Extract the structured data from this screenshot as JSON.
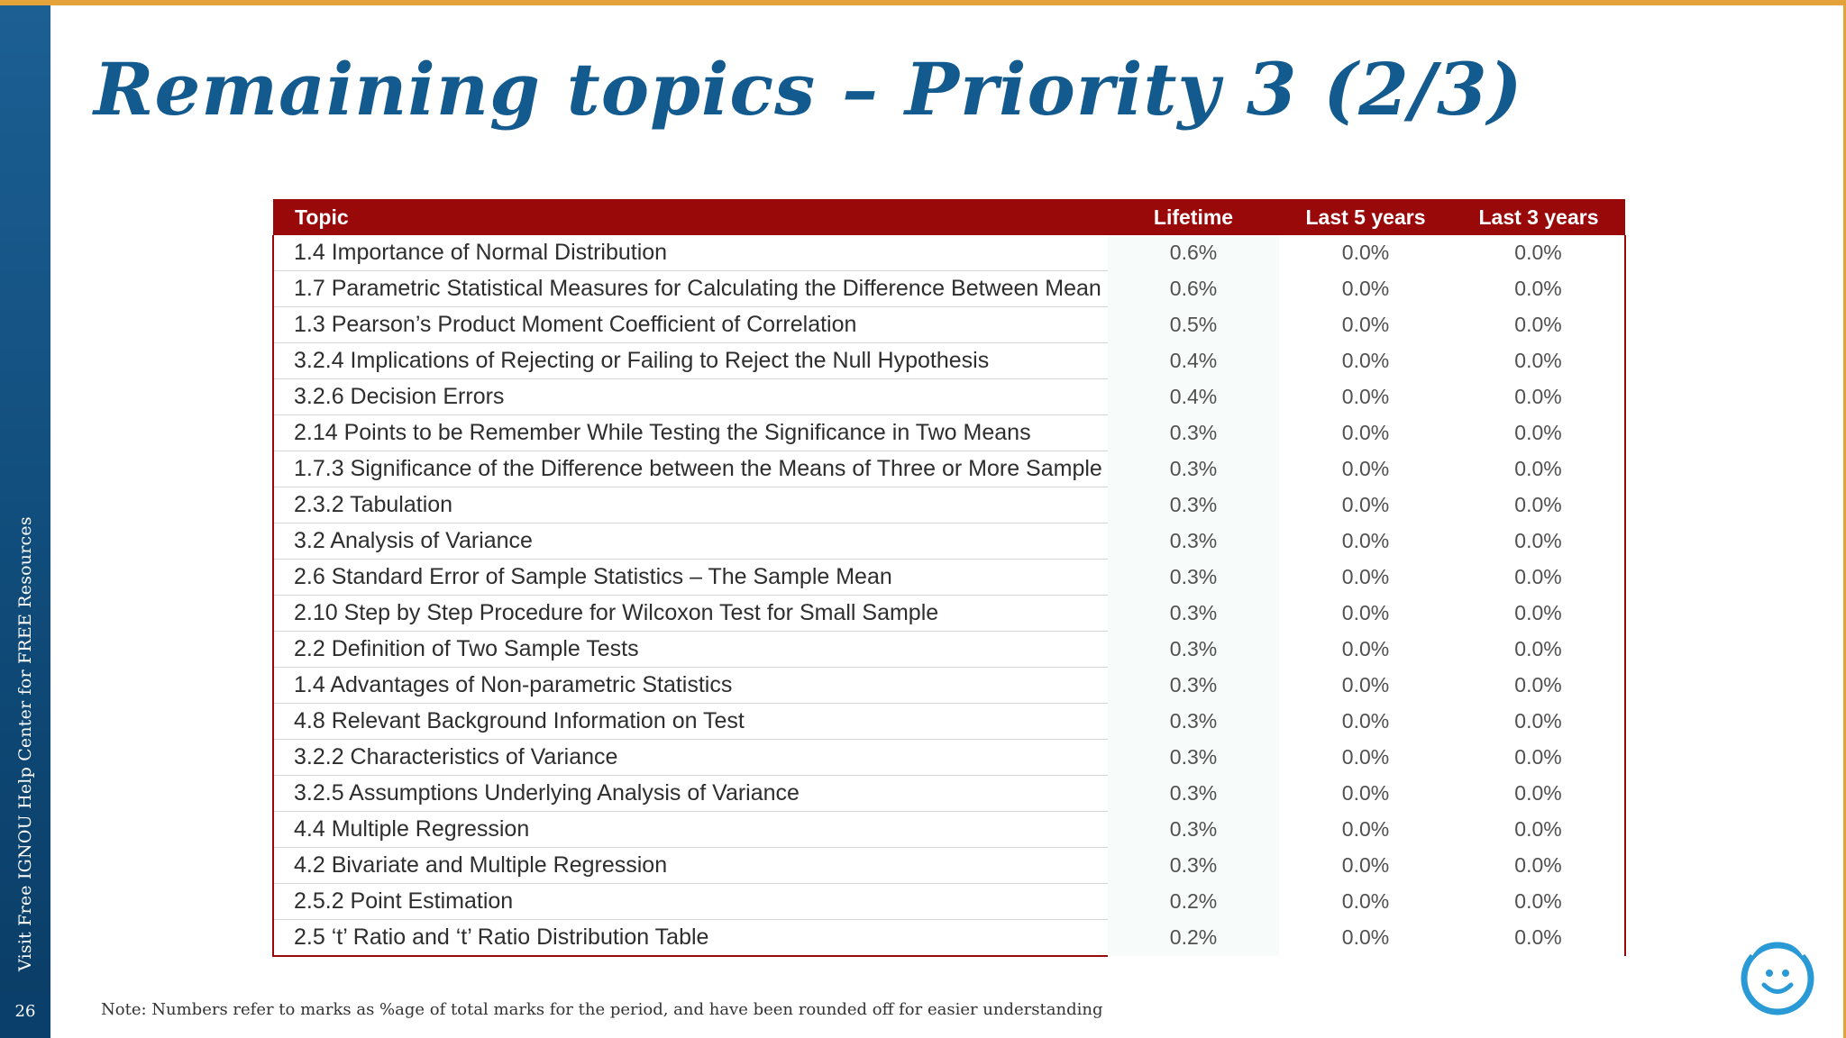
{
  "slide": {
    "title": "Remaining topics – Priority 3 (2/3)",
    "side_text": "Visit Free IGNOU Help Center for FREE Resources",
    "page_number": "26",
    "note": "Note: Numbers refer to marks as %age of total marks for the period, and have been rounded off for easier understanding",
    "logo_icon": "smiley-face-logo"
  },
  "table": {
    "headers": {
      "topic": "Topic",
      "lifetime": "Lifetime",
      "last5": "Last 5 years",
      "last3": "Last 3 years"
    },
    "rows": [
      {
        "topic": "1.4 Importance of Normal Distribution",
        "lifetime": "0.6%",
        "last5": "0.0%",
        "last3": "0.0%"
      },
      {
        "topic": "1.7 Parametric Statistical Measures for Calculating the Difference Between Mean",
        "lifetime": "0.6%",
        "last5": "0.0%",
        "last3": "0.0%"
      },
      {
        "topic": "1.3 Pearson’s Product Moment Coefficient of Correlation",
        "lifetime": "0.5%",
        "last5": "0.0%",
        "last3": "0.0%"
      },
      {
        "topic": "3.2.4 Implications of Rejecting or Failing to Reject the Null Hypothesis",
        "lifetime": "0.4%",
        "last5": "0.0%",
        "last3": "0.0%"
      },
      {
        "topic": "3.2.6 Decision Errors",
        "lifetime": "0.4%",
        "last5": "0.0%",
        "last3": "0.0%"
      },
      {
        "topic": "2.14 Points to be Remember While Testing the Significance in Two Means",
        "lifetime": "0.3%",
        "last5": "0.0%",
        "last3": "0.0%"
      },
      {
        "topic": "1.7.3 Significance of the Difference between the Means of Three or More Sample",
        "lifetime": "0.3%",
        "last5": "0.0%",
        "last3": "0.0%"
      },
      {
        "topic": "2.3.2 Tabulation",
        "lifetime": "0.3%",
        "last5": "0.0%",
        "last3": "0.0%"
      },
      {
        "topic": "3.2 Analysis of Variance",
        "lifetime": "0.3%",
        "last5": "0.0%",
        "last3": "0.0%"
      },
      {
        "topic": "2.6 Standard Error of Sample Statistics – The Sample Mean",
        "lifetime": "0.3%",
        "last5": "0.0%",
        "last3": "0.0%"
      },
      {
        "topic": "2.10 Step by Step Procedure for Wilcoxon Test for Small Sample",
        "lifetime": "0.3%",
        "last5": "0.0%",
        "last3": "0.0%"
      },
      {
        "topic": "2.2 Definition of Two Sample Tests",
        "lifetime": "0.3%",
        "last5": "0.0%",
        "last3": "0.0%"
      },
      {
        "topic": "1.4 Advantages of Non-parametric Statistics",
        "lifetime": "0.3%",
        "last5": "0.0%",
        "last3": "0.0%"
      },
      {
        "topic": "4.8 Relevant Background Information on Test",
        "lifetime": "0.3%",
        "last5": "0.0%",
        "last3": "0.0%"
      },
      {
        "topic": "3.2.2 Characteristics of Variance",
        "lifetime": "0.3%",
        "last5": "0.0%",
        "last3": "0.0%"
      },
      {
        "topic": "3.2.5 Assumptions Underlying Analysis of Variance",
        "lifetime": "0.3%",
        "last5": "0.0%",
        "last3": "0.0%"
      },
      {
        "topic": "4.4 Multiple Regression",
        "lifetime": "0.3%",
        "last5": "0.0%",
        "last3": "0.0%"
      },
      {
        "topic": "4.2 Bivariate and Multiple Regression",
        "lifetime": "0.3%",
        "last5": "0.0%",
        "last3": "0.0%"
      },
      {
        "topic": "2.5.2 Point Estimation",
        "lifetime": "0.2%",
        "last5": "0.0%",
        "last3": "0.0%"
      },
      {
        "topic": "2.5 ‘t’ Ratio and ‘t’ Ratio Distribution Table",
        "lifetime": "0.2%",
        "last5": "0.0%",
        "last3": "0.0%"
      }
    ]
  },
  "colors": {
    "header_bg": "#9a0909",
    "title": "#135a8f",
    "side_bar": "#0f4a78",
    "accent_line": "#e3a33a",
    "logo": "#2a9ad6"
  }
}
